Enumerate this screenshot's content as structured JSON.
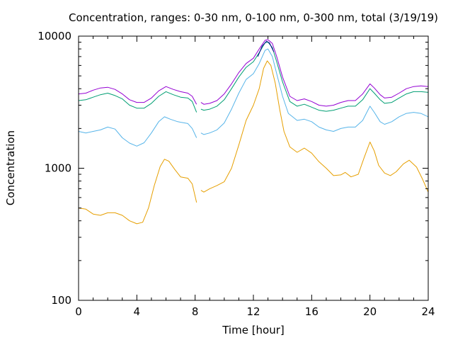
{
  "chart_data": {
    "type": "line",
    "title": "Concentration, ranges: 0-30 nm, 0-100 nm, 0-300 nm, total (3/19/19)",
    "xlabel": "Time [hour]",
    "ylabel": "Concentration",
    "xlim": [
      0,
      24
    ],
    "ylim": [
      100,
      10000
    ],
    "y_scale": "log",
    "grid": false,
    "x_ticks": [
      0,
      4,
      8,
      12,
      16,
      20,
      24
    ],
    "x_tick_labels": [
      "0",
      "4",
      "8",
      "12",
      "16",
      "20",
      "24"
    ],
    "y_ticks": [
      100,
      1000,
      10000
    ],
    "y_tick_labels": [
      "100",
      "1000",
      "10000"
    ],
    "series": [
      {
        "color": "#e69f00",
        "points": [
          [
            0,
            500
          ],
          [
            0.5,
            490
          ],
          [
            1,
            450
          ],
          [
            1.5,
            440
          ],
          [
            2,
            460
          ],
          [
            2.5,
            460
          ],
          [
            3,
            440
          ],
          [
            3.5,
            400
          ],
          [
            4,
            380
          ],
          [
            4.4,
            390
          ],
          [
            4.8,
            500
          ],
          [
            5.2,
            740
          ],
          [
            5.6,
            1030
          ],
          [
            5.9,
            1170
          ],
          [
            6.2,
            1130
          ],
          [
            6.6,
            980
          ],
          [
            7,
            860
          ],
          [
            7.5,
            840
          ],
          [
            7.8,
            760
          ],
          [
            8.1,
            550
          ],
          null,
          [
            8.4,
            680
          ],
          [
            8.6,
            660
          ],
          [
            9,
            700
          ],
          [
            9.5,
            740
          ],
          [
            10,
            790
          ],
          [
            10.5,
            1000
          ],
          [
            11,
            1500
          ],
          [
            11.5,
            2300
          ],
          [
            12,
            3000
          ],
          [
            12.4,
            4000
          ],
          [
            12.7,
            5700
          ],
          [
            12.95,
            6500
          ],
          [
            13.2,
            6000
          ],
          [
            13.5,
            4400
          ],
          [
            13.8,
            2800
          ],
          [
            14.1,
            1900
          ],
          [
            14.5,
            1450
          ],
          [
            15,
            1320
          ],
          [
            15.5,
            1420
          ],
          [
            16,
            1300
          ],
          [
            16.5,
            1120
          ],
          [
            17,
            1000
          ],
          [
            17.5,
            880
          ],
          [
            18,
            890
          ],
          [
            18.3,
            930
          ],
          [
            18.7,
            860
          ],
          [
            19.2,
            900
          ],
          [
            19.6,
            1200
          ],
          [
            20,
            1580
          ],
          [
            20.3,
            1350
          ],
          [
            20.6,
            1050
          ],
          [
            21,
            920
          ],
          [
            21.4,
            880
          ],
          [
            21.8,
            940
          ],
          [
            22.3,
            1080
          ],
          [
            22.7,
            1150
          ],
          [
            23.2,
            1020
          ],
          [
            23.6,
            830
          ],
          [
            24,
            660
          ]
        ]
      },
      {
        "color": "#56b4e9",
        "points": [
          [
            0,
            1900
          ],
          [
            0.5,
            1850
          ],
          [
            1,
            1900
          ],
          [
            1.5,
            1950
          ],
          [
            2,
            2050
          ],
          [
            2.5,
            1980
          ],
          [
            3,
            1700
          ],
          [
            3.5,
            1550
          ],
          [
            4,
            1470
          ],
          [
            4.5,
            1560
          ],
          [
            5,
            1850
          ],
          [
            5.5,
            2250
          ],
          [
            5.9,
            2450
          ],
          [
            6.3,
            2350
          ],
          [
            6.8,
            2250
          ],
          [
            7.5,
            2180
          ],
          [
            7.8,
            2000
          ],
          [
            8.1,
            1700
          ],
          null,
          [
            8.4,
            1850
          ],
          [
            8.6,
            1800
          ],
          [
            9,
            1850
          ],
          [
            9.5,
            1950
          ],
          [
            10,
            2200
          ],
          [
            10.5,
            2800
          ],
          [
            11,
            3700
          ],
          [
            11.5,
            4700
          ],
          [
            12,
            5200
          ],
          [
            12.4,
            6200
          ],
          [
            12.8,
            7800
          ],
          [
            13,
            8000
          ],
          [
            13.3,
            7000
          ],
          [
            13.6,
            5200
          ],
          [
            14,
            3500
          ],
          [
            14.4,
            2600
          ],
          [
            15,
            2300
          ],
          [
            15.5,
            2350
          ],
          [
            16,
            2250
          ],
          [
            16.5,
            2050
          ],
          [
            17,
            1950
          ],
          [
            17.5,
            1900
          ],
          [
            18,
            2000
          ],
          [
            18.5,
            2050
          ],
          [
            19,
            2050
          ],
          [
            19.5,
            2300
          ],
          [
            20,
            2950
          ],
          [
            20.3,
            2650
          ],
          [
            20.7,
            2250
          ],
          [
            21,
            2150
          ],
          [
            21.5,
            2250
          ],
          [
            22,
            2450
          ],
          [
            22.5,
            2600
          ],
          [
            23,
            2650
          ],
          [
            23.5,
            2600
          ],
          [
            24,
            2450
          ]
        ]
      },
      {
        "color": "#009e73",
        "points": [
          [
            0,
            3250
          ],
          [
            0.5,
            3300
          ],
          [
            1,
            3450
          ],
          [
            1.5,
            3600
          ],
          [
            2,
            3700
          ],
          [
            2.5,
            3550
          ],
          [
            3,
            3350
          ],
          [
            3.5,
            3000
          ],
          [
            4,
            2850
          ],
          [
            4.5,
            2850
          ],
          [
            5,
            3100
          ],
          [
            5.5,
            3500
          ],
          [
            6,
            3800
          ],
          [
            6.5,
            3600
          ],
          [
            7,
            3450
          ],
          [
            7.5,
            3400
          ],
          [
            7.8,
            3200
          ],
          [
            8.1,
            2650
          ],
          null,
          [
            8.4,
            2800
          ],
          [
            8.6,
            2750
          ],
          [
            9,
            2800
          ],
          [
            9.5,
            2950
          ],
          [
            10,
            3300
          ],
          [
            10.5,
            4000
          ],
          [
            11,
            4900
          ],
          [
            11.5,
            5800
          ],
          [
            12,
            6400
          ],
          [
            12.4,
            7500
          ],
          [
            12.8,
            8900
          ],
          [
            13,
            9000
          ],
          [
            13.3,
            8200
          ],
          [
            13.6,
            6400
          ],
          [
            14,
            4500
          ],
          [
            14.5,
            3200
          ],
          [
            15,
            2950
          ],
          [
            15.5,
            3050
          ],
          [
            16,
            2900
          ],
          [
            16.5,
            2750
          ],
          [
            17,
            2700
          ],
          [
            17.5,
            2750
          ],
          [
            18,
            2850
          ],
          [
            18.5,
            2950
          ],
          [
            19,
            2950
          ],
          [
            19.5,
            3300
          ],
          [
            20,
            4000
          ],
          [
            20.3,
            3700
          ],
          [
            20.7,
            3300
          ],
          [
            21,
            3100
          ],
          [
            21.5,
            3150
          ],
          [
            22,
            3400
          ],
          [
            22.5,
            3650
          ],
          [
            23,
            3800
          ],
          [
            23.5,
            3800
          ],
          [
            24,
            3750
          ]
        ]
      },
      {
        "color": "#9400d3",
        "points": [
          [
            0,
            3650
          ],
          [
            0.5,
            3700
          ],
          [
            1,
            3900
          ],
          [
            1.5,
            4050
          ],
          [
            2,
            4100
          ],
          [
            2.5,
            3950
          ],
          [
            3,
            3650
          ],
          [
            3.5,
            3300
          ],
          [
            4,
            3150
          ],
          [
            4.5,
            3150
          ],
          [
            5,
            3400
          ],
          [
            5.5,
            3850
          ],
          [
            6,
            4150
          ],
          [
            6.5,
            3950
          ],
          [
            7,
            3800
          ],
          [
            7.5,
            3700
          ],
          [
            7.8,
            3500
          ],
          [
            8.1,
            3050
          ],
          null,
          [
            8.4,
            3150
          ],
          [
            8.6,
            3050
          ],
          [
            9,
            3100
          ],
          [
            9.5,
            3250
          ],
          [
            10,
            3650
          ],
          [
            10.5,
            4350
          ],
          [
            11,
            5300
          ],
          [
            11.5,
            6200
          ],
          [
            12,
            6800
          ],
          [
            12.4,
            8000
          ],
          [
            12.8,
            9300
          ],
          [
            13,
            9400
          ],
          [
            13.3,
            8800
          ],
          [
            13.6,
            7000
          ],
          [
            14,
            4900
          ],
          [
            14.5,
            3500
          ],
          [
            15,
            3250
          ],
          [
            15.5,
            3350
          ],
          [
            16,
            3200
          ],
          [
            16.5,
            3000
          ],
          [
            17,
            2950
          ],
          [
            17.5,
            3000
          ],
          [
            18,
            3150
          ],
          [
            18.5,
            3250
          ],
          [
            19,
            3250
          ],
          [
            19.5,
            3650
          ],
          [
            20,
            4350
          ],
          [
            20.3,
            4050
          ],
          [
            20.7,
            3600
          ],
          [
            21,
            3400
          ],
          [
            21.5,
            3450
          ],
          [
            22,
            3700
          ],
          [
            22.5,
            4000
          ],
          [
            23,
            4150
          ],
          [
            23.5,
            4200
          ],
          [
            24,
            4150
          ]
        ]
      },
      {
        "color": "#00008b",
        "points": [
          [
            12.3,
            7000
          ],
          [
            12.6,
            8400
          ],
          [
            12.9,
            9150
          ],
          [
            13.1,
            8900
          ],
          [
            13.4,
            7600
          ]
        ]
      }
    ]
  }
}
